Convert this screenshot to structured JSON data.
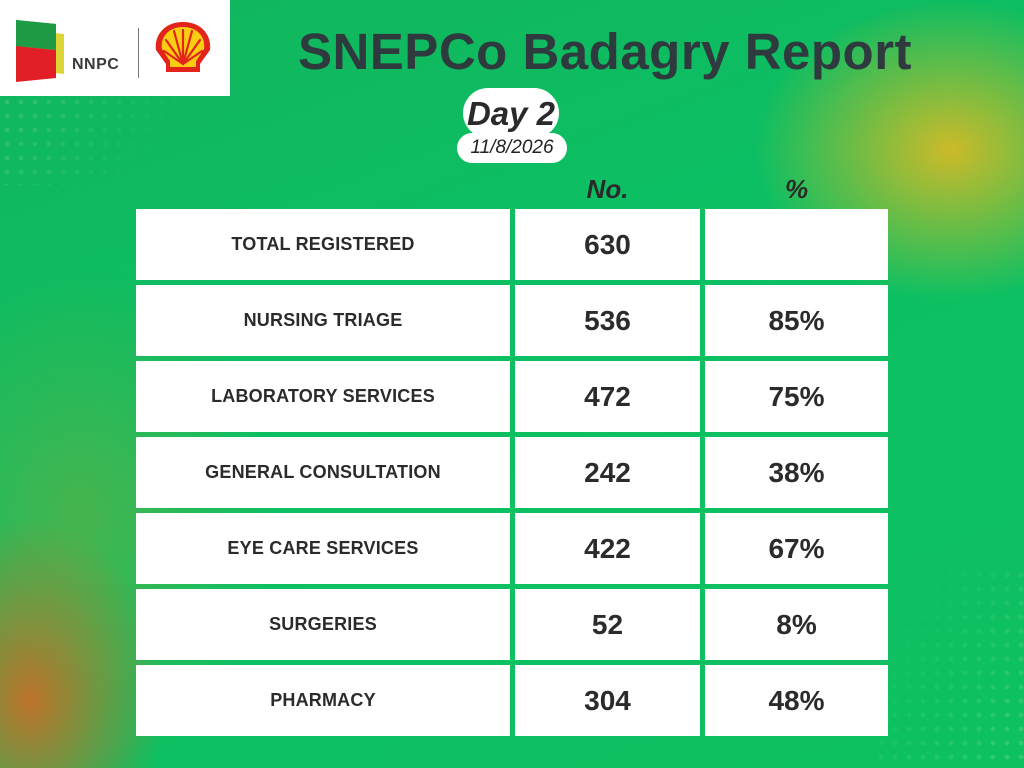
{
  "logos": {
    "nnpc_text": "NNPC"
  },
  "header": {
    "title": "SNEPCo Badagry Report",
    "day": "Day 2",
    "date": "11/8/2026"
  },
  "columns": {
    "number": "No.",
    "percent": "%"
  },
  "rows": [
    {
      "label": "TOTAL REGISTERED",
      "number": "630",
      "percent": ""
    },
    {
      "label": "NURSING TRIAGE",
      "number": "536",
      "percent": "85%"
    },
    {
      "label": "LABORATORY SERVICES",
      "number": "472",
      "percent": "75%"
    },
    {
      "label": "GENERAL CONSULTATION",
      "number": "242",
      "percent": "38%"
    },
    {
      "label": "EYE CARE SERVICES",
      "number": "422",
      "percent": "67%"
    },
    {
      "label": "SURGERIES",
      "number": "52",
      "percent": "8%"
    },
    {
      "label": "PHARMACY",
      "number": "304",
      "percent": "48%"
    }
  ],
  "colors": {
    "background_green": "#0fbf5f",
    "text_dark": "#2e3a3e",
    "cell_white": "#ffffff",
    "accent_yellow": "#d6ba26",
    "accent_orange": "#c67028"
  }
}
